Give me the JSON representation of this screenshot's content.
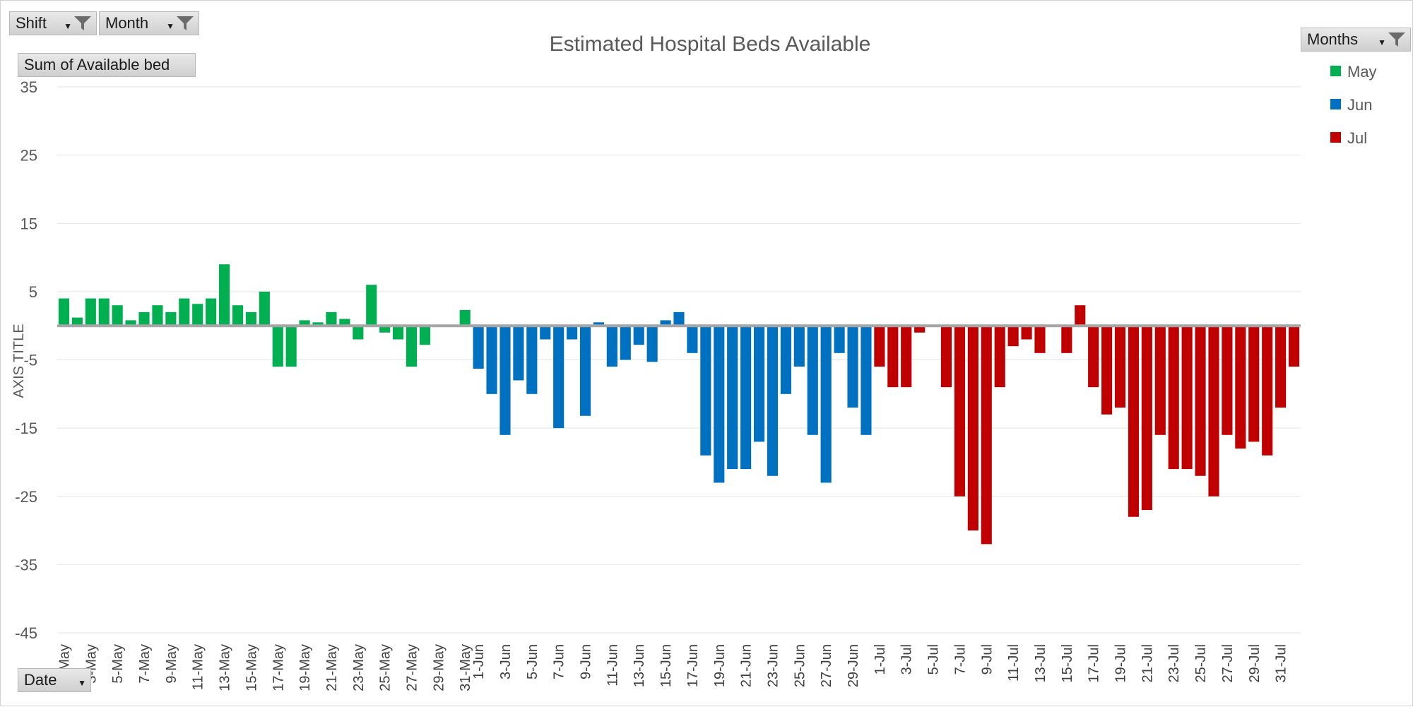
{
  "filters": {
    "shift": "Shift",
    "month": "Month",
    "value_field": "Sum of Available bed",
    "axis_field": "Date",
    "legend_field": "Months"
  },
  "icons": {
    "dropdown": "chevron-down-icon",
    "filter": "filter-funnel-icon"
  },
  "chart_data": {
    "type": "bar",
    "title": "Estimated Hospital Beds Available",
    "ylabel": "AXIS TITLE",
    "ylim": [
      -45,
      35
    ],
    "yticks": [
      35,
      25,
      15,
      5,
      -5,
      -15,
      -25,
      -35,
      -45
    ],
    "grid": true,
    "legend_position": "top-right",
    "series": [
      {
        "name": "May",
        "color": "#00b050",
        "start_day": 1,
        "values": [
          4,
          1.2,
          4,
          4,
          3,
          0.8,
          2,
          3,
          2,
          4,
          3.2,
          4,
          9,
          3,
          2,
          5,
          -6,
          -6,
          0.8,
          0.5,
          2,
          1,
          -2,
          6,
          -1,
          -2,
          -6,
          -2.8,
          null,
          null,
          2.3
        ]
      },
      {
        "name": "Jun",
        "color": "#0070c0",
        "start_day": 1,
        "values": [
          -6.3,
          -10,
          -16,
          -8,
          -10,
          -2,
          -15,
          -2,
          -13.2,
          0.5,
          -6,
          -5,
          -2.8,
          -5.3,
          0.8,
          2,
          -4,
          -19,
          -23,
          -21,
          -21,
          -17,
          -22,
          -10,
          -6,
          -16,
          -23,
          -4,
          -12,
          -16
        ]
      },
      {
        "name": "Jul",
        "color": "#c00000",
        "start_day": 1,
        "values": [
          -6,
          -9,
          -9,
          -1,
          null,
          -9,
          -25,
          -30,
          -32,
          -9,
          -3,
          -2,
          -4,
          null,
          -4,
          3,
          -9,
          -13,
          -12,
          -28,
          -27,
          -16,
          -21,
          -21,
          -22,
          -25,
          -16,
          -18,
          -17,
          -19,
          -12,
          -6
        ]
      }
    ]
  }
}
